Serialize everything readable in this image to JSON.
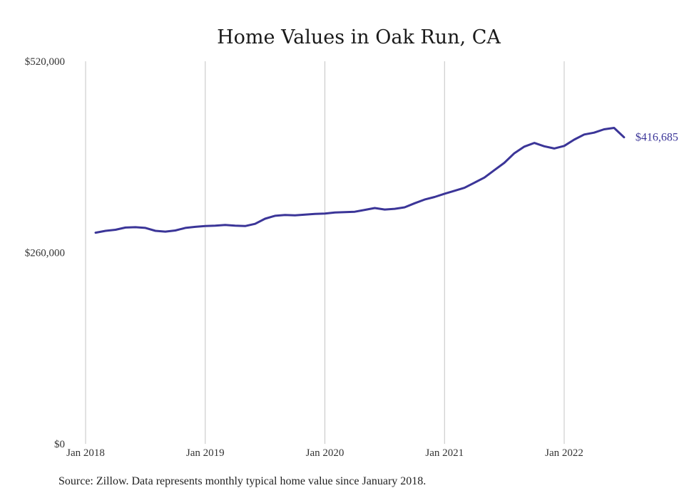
{
  "chart_data": {
    "type": "line",
    "title": "Home Values in Oak Run, CA",
    "xlabel": "",
    "ylabel": "",
    "ylim": [
      0,
      520000
    ],
    "yticks": [
      0,
      260000,
      520000
    ],
    "ytick_labels": [
      "$0",
      "$260,000",
      "$520,000"
    ],
    "xticks": [
      "2018-01",
      "2019-01",
      "2020-01",
      "2021-01",
      "2022-01"
    ],
    "xtick_labels": [
      "Jan 2018",
      "Jan 2019",
      "Jan 2020",
      "Jan 2021",
      "Jan 2022"
    ],
    "xlim": [
      "2018-01",
      "2022-07"
    ],
    "grid": "vertical",
    "x": [
      "2018-02",
      "2018-03",
      "2018-04",
      "2018-05",
      "2018-06",
      "2018-07",
      "2018-08",
      "2018-09",
      "2018-10",
      "2018-11",
      "2018-12",
      "2019-01",
      "2019-02",
      "2019-03",
      "2019-04",
      "2019-05",
      "2019-06",
      "2019-07",
      "2019-08",
      "2019-09",
      "2019-10",
      "2019-11",
      "2019-12",
      "2020-01",
      "2020-02",
      "2020-03",
      "2020-04",
      "2020-05",
      "2020-06",
      "2020-07",
      "2020-08",
      "2020-09",
      "2020-10",
      "2020-11",
      "2020-12",
      "2021-01",
      "2021-02",
      "2021-03",
      "2021-04",
      "2021-05",
      "2021-06",
      "2021-07",
      "2021-08",
      "2021-09",
      "2021-10",
      "2021-11",
      "2021-12",
      "2022-01",
      "2022-02",
      "2022-03",
      "2022-04",
      "2022-05",
      "2022-06",
      "2022-07"
    ],
    "series": [
      {
        "values": [
          287000,
          289500,
          291000,
          294000,
          294500,
          293500,
          289500,
          288500,
          290000,
          293500,
          295000,
          296000,
          296500,
          297500,
          296500,
          296000,
          299000,
          306000,
          310000,
          311000,
          310500,
          311500,
          312500,
          313000,
          314500,
          315000,
          315500,
          318000,
          320500,
          318500,
          319500,
          321500,
          327000,
          332000,
          335500,
          340000,
          344000,
          348000,
          355000,
          362000,
          372000,
          382000,
          395000,
          404000,
          409000,
          404500,
          401500,
          405000,
          413500,
          420500,
          423000,
          427500,
          429500,
          416685
        ],
        "color": "#3b3598",
        "end_label": "$416,685"
      }
    ]
  },
  "footer": {
    "source": "Source: Zillow. Data represents monthly typical home value since January 2018."
  }
}
